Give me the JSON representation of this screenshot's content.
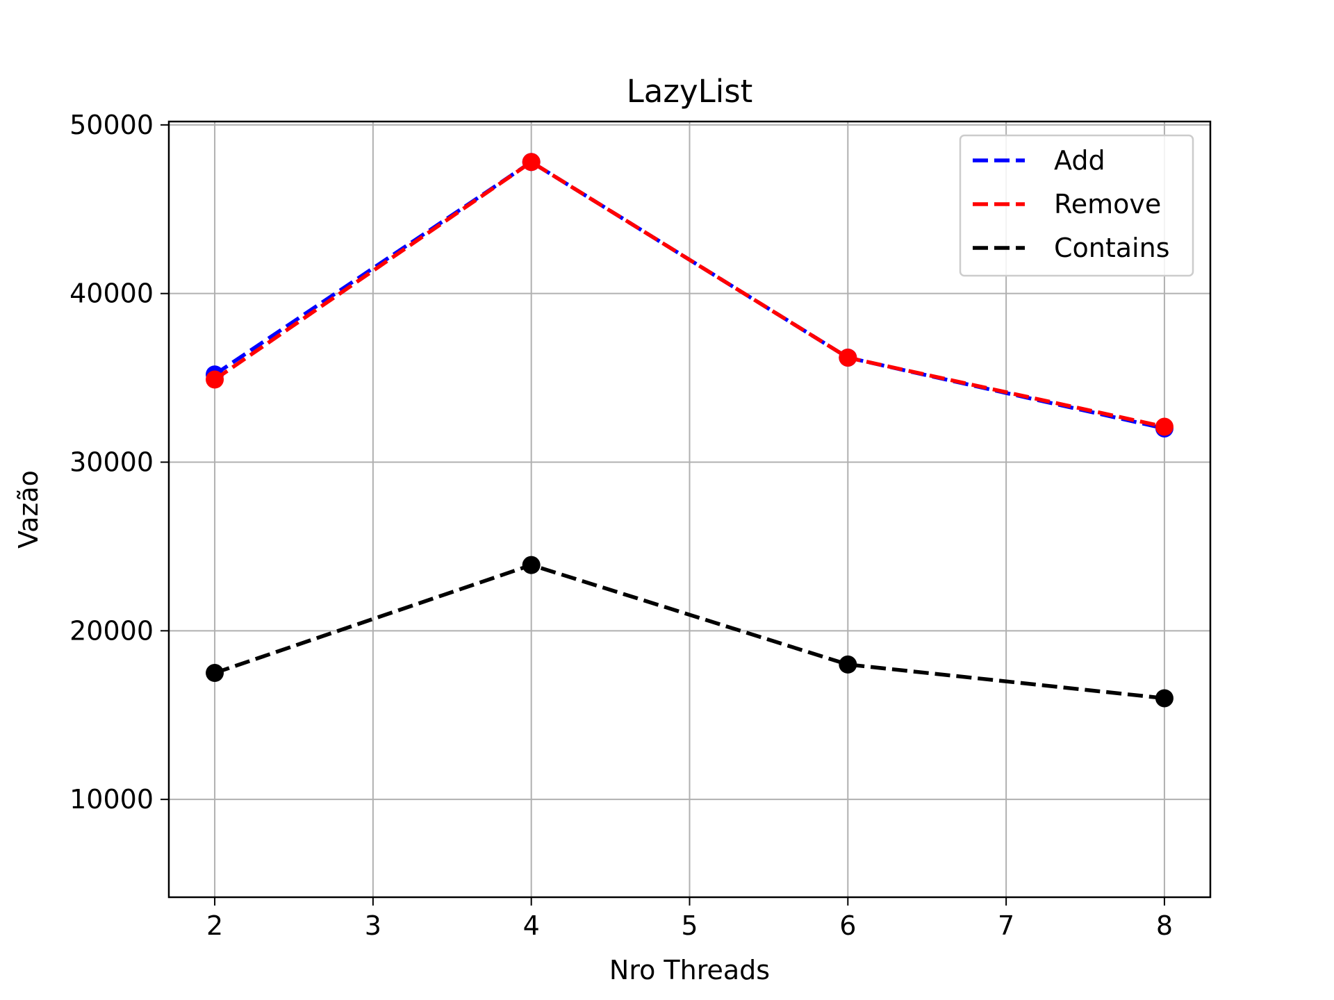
{
  "chart_data": {
    "type": "line",
    "title": "LazyList",
    "xlabel": "Nro Threads",
    "ylabel": "Vazão",
    "x": [
      2,
      4,
      6,
      8
    ],
    "xticks": [
      "2",
      "3",
      "4",
      "5",
      "6",
      "7",
      "8"
    ],
    "yticks": [
      "10000",
      "20000",
      "30000",
      "40000",
      "50000"
    ],
    "xlim": [
      1.71,
      8.29
    ],
    "ylim": [
      4200,
      50200
    ],
    "grid": true,
    "legend_position": "top-right",
    "series": [
      {
        "name": "Add",
        "values": [
          35200,
          47800,
          36200,
          32000
        ],
        "color": "#0000ff",
        "marker": "o",
        "linestyle": "dashed"
      },
      {
        "name": "Remove",
        "values": [
          34900,
          47800,
          36200,
          32100
        ],
        "color": "#ff0000",
        "marker": "o",
        "linestyle": "dashed"
      },
      {
        "name": "Contains",
        "values": [
          17500,
          23900,
          18000,
          16000
        ],
        "color": "#000000",
        "marker": "o",
        "linestyle": "dashed"
      }
    ]
  }
}
